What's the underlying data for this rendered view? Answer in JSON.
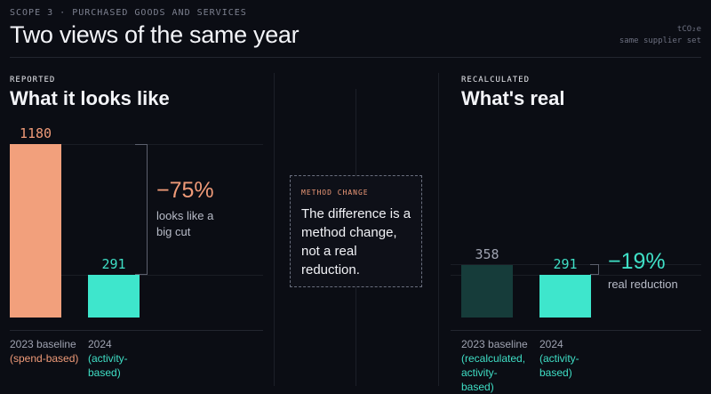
{
  "header": {
    "eyebrow": "SCOPE 3 · PURCHASED GOODS AND SERVICES",
    "title": "Two views of the same year",
    "unit": "tCO₂e",
    "scope_note": "same supplier set"
  },
  "colors": {
    "reported_accent": "#ef9a78",
    "reported_bar": "#f2a07c",
    "recalc_accent": "#3fdfc6",
    "recalc_bar": "#3ee6cc",
    "baseline_recalc_bar": "#163c3a",
    "background": "#0b0d14"
  },
  "panels": {
    "reported": {
      "tag": "REPORTED",
      "title": "What it looks like",
      "delta": "−75%",
      "delta_note_1": "looks like a",
      "delta_note_2": "big cut",
      "baseline_label": "1180",
      "current_label": "291",
      "baseline_x_1": "2023 baseline",
      "baseline_x_2": "(spend-based)",
      "current_x_1": "2024",
      "current_x_2": "(activity-",
      "current_x_3": "based)"
    },
    "recalculated": {
      "tag": "RECALCULATED",
      "title": "What's real",
      "delta": "−19%",
      "delta_note_1": "real reduction",
      "baseline_label": "358",
      "current_label": "291",
      "baseline_x_1": "2023 baseline",
      "baseline_x_2": "(recalculated,",
      "baseline_x_3": "activity-",
      "baseline_x_4": "based)",
      "current_x_1": "2024",
      "current_x_2": "(activity-",
      "current_x_3": "based)"
    }
  },
  "callout": {
    "tag": "METHOD CHANGE",
    "text": "The difference is a method change, not a real reduction."
  },
  "chart_data": [
    {
      "type": "bar",
      "categories": [
        "2023 baseline (spend-based)",
        "2024 (activity-based)"
      ],
      "values": [
        1180,
        291
      ],
      "title": "What it looks like",
      "ylabel": "tCO₂e",
      "ylim": [
        0,
        1180
      ]
    },
    {
      "type": "bar",
      "categories": [
        "2023 baseline (recalculated, activity-based)",
        "2024 (activity-based)"
      ],
      "values": [
        358,
        291
      ],
      "title": "What's real",
      "ylabel": "tCO₂e",
      "ylim": [
        0,
        1180
      ]
    }
  ]
}
